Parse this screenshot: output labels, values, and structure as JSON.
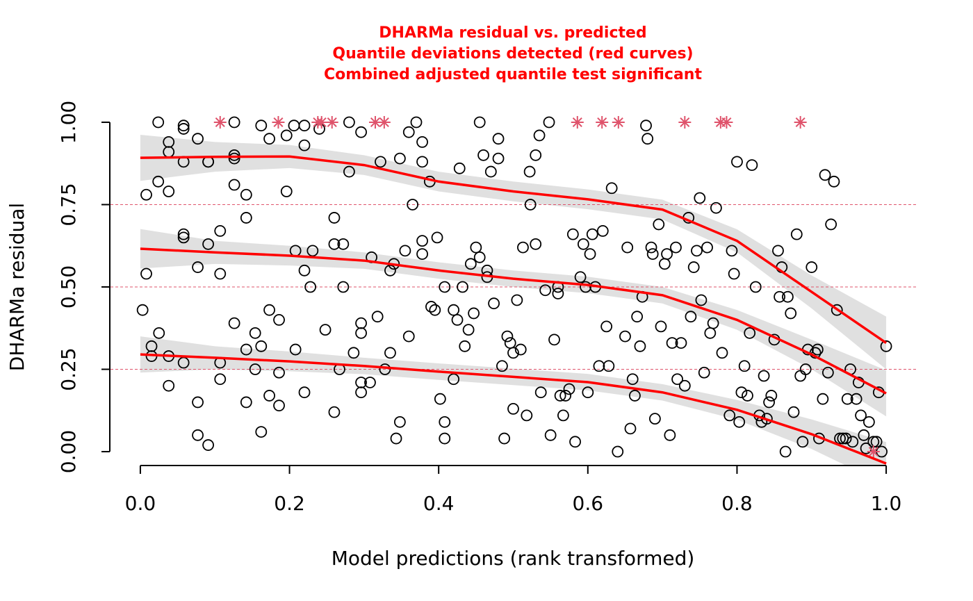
{
  "chart_data": {
    "type": "scatter",
    "title": [
      "DHARMa residual vs. predicted",
      "Quantile deviations detected (red curves)",
      "Combined adjusted quantile test significant"
    ],
    "title_color": "#ff0000",
    "x_label": "Model predictions (rank transformed)",
    "y_label": "DHARMa residual",
    "xlim": [
      -0.04,
      1.04
    ],
    "ylim": [
      -0.04,
      1.04
    ],
    "xticks": [
      {
        "value": 0,
        "label": "0.0"
      },
      {
        "value": 0.2,
        "label": "0.2"
      },
      {
        "value": 0.4,
        "label": "0.4"
      },
      {
        "value": 0.6,
        "label": "0.6"
      },
      {
        "value": 0.8,
        "label": "0.8"
      },
      {
        "value": 1,
        "label": "1.0"
      }
    ],
    "yticks": [
      {
        "value": 0,
        "label": "0.00"
      },
      {
        "value": 0.25,
        "label": "0.25"
      },
      {
        "value": 0.5,
        "label": "0.50"
      },
      {
        "value": 0.75,
        "label": "0.75"
      },
      {
        "value": 1,
        "label": "1.00"
      }
    ],
    "hlines": [
      0.25,
      0.5,
      0.75
    ],
    "hline_color": "#df536b",
    "band_color": "#e0e0e0",
    "series": [
      {
        "type": "band",
        "color": "#e0e0e0",
        "x": [
          0,
          0.1,
          0.2,
          0.3,
          0.4,
          0.5,
          0.6,
          0.7,
          0.8,
          0.9,
          1.0
        ],
        "lower": [
          0.822,
          0.85,
          0.861,
          0.84,
          0.79,
          0.76,
          0.736,
          0.705,
          0.605,
          0.435,
          0.25
        ],
        "upper": [
          0.962,
          0.94,
          0.931,
          0.9,
          0.85,
          0.82,
          0.796,
          0.765,
          0.675,
          0.535,
          0.41
        ]
      },
      {
        "type": "band",
        "color": "#e0e0e0",
        "x": [
          0,
          0.1,
          0.2,
          0.3,
          0.4,
          0.5,
          0.6,
          0.7,
          0.8,
          0.9,
          1.0
        ],
        "lower": [
          0.556,
          0.57,
          0.565,
          0.555,
          0.525,
          0.5,
          0.481,
          0.45,
          0.37,
          0.25,
          0.107
        ],
        "upper": [
          0.676,
          0.64,
          0.625,
          0.605,
          0.575,
          0.55,
          0.531,
          0.5,
          0.43,
          0.34,
          0.247
        ]
      },
      {
        "type": "band",
        "color": "#e0e0e0",
        "x": [
          0,
          0.1,
          0.2,
          0.3,
          0.4,
          0.5,
          0.6,
          0.7,
          0.8,
          0.9,
          1.0
        ],
        "lower": [
          0.24,
          0.25,
          0.244,
          0.235,
          0.218,
          0.202,
          0.186,
          0.155,
          0.097,
          0.008,
          -0.101
        ],
        "upper": [
          0.35,
          0.32,
          0.304,
          0.285,
          0.268,
          0.252,
          0.236,
          0.205,
          0.157,
          0.098,
          0.029
        ]
      },
      {
        "type": "scatter",
        "marker": "circle",
        "color": "#000000",
        "x": [
          0.003,
          0.008,
          0.008,
          0.015,
          0.015,
          0.024,
          0.024,
          0.025,
          0.038,
          0.038,
          0.038,
          0.038,
          0.038,
          0.058,
          0.058,
          0.058,
          0.058,
          0.058,
          0.058,
          0.077,
          0.077,
          0.077,
          0.077,
          0.091,
          0.091,
          0.091,
          0.091,
          0.107,
          0.107,
          0.107,
          0.107,
          0.126,
          0.126,
          0.126,
          0.126,
          0.126,
          0.142,
          0.142,
          0.142,
          0.142,
          0.154,
          0.154,
          0.162,
          0.162,
          0.162,
          0.173,
          0.173,
          0.173,
          0.186,
          0.186,
          0.186,
          0.196,
          0.196,
          0.206,
          0.208,
          0.208,
          0.22,
          0.22,
          0.22,
          0.22,
          0.228,
          0.231,
          0.24,
          0.248,
          0.26,
          0.26,
          0.26,
          0.267,
          0.272,
          0.272,
          0.28,
          0.28,
          0.286,
          0.296,
          0.296,
          0.296,
          0.296,
          0.296,
          0.308,
          0.31,
          0.318,
          0.322,
          0.328,
          0.335,
          0.335,
          0.34,
          0.343,
          0.348,
          0.348,
          0.355,
          0.36,
          0.36,
          0.365,
          0.37,
          0.378,
          0.378,
          0.378,
          0.378,
          0.388,
          0.39,
          0.395,
          0.398,
          0.402,
          0.408,
          0.408,
          0.408,
          0.42,
          0.42,
          0.425,
          0.428,
          0.432,
          0.435,
          0.44,
          0.443,
          0.447,
          0.45,
          0.455,
          0.455,
          0.46,
          0.465,
          0.465,
          0.47,
          0.474,
          0.48,
          0.48,
          0.485,
          0.488,
          0.492,
          0.496,
          0.5,
          0.5,
          0.505,
          0.51,
          0.513,
          0.518,
          0.522,
          0.523,
          0.53,
          0.53,
          0.535,
          0.537,
          0.543,
          0.548,
          0.55,
          0.555,
          0.56,
          0.56,
          0.563,
          0.567,
          0.57,
          0.575,
          0.58,
          0.583,
          0.59,
          0.594,
          0.597,
          0.6,
          0.603,
          0.606,
          0.61,
          0.615,
          0.62,
          0.625,
          0.628,
          0.632,
          0.64,
          0.65,
          0.653,
          0.657,
          0.66,
          0.663,
          0.666,
          0.67,
          0.673,
          0.678,
          0.68,
          0.685,
          0.687,
          0.69,
          0.695,
          0.698,
          0.703,
          0.706,
          0.71,
          0.713,
          0.718,
          0.72,
          0.725,
          0.73,
          0.735,
          0.738,
          0.742,
          0.746,
          0.75,
          0.752,
          0.756,
          0.76,
          0.764,
          0.768,
          0.772,
          0.78,
          0.79,
          0.793,
          0.796,
          0.8,
          0.803,
          0.806,
          0.81,
          0.814,
          0.817,
          0.82,
          0.825,
          0.83,
          0.833,
          0.836,
          0.84,
          0.843,
          0.846,
          0.85,
          0.855,
          0.857,
          0.86,
          0.865,
          0.868,
          0.872,
          0.876,
          0.88,
          0.885,
          0.888,
          0.892,
          0.895,
          0.9,
          0.905,
          0.908,
          0.91,
          0.915,
          0.918,
          0.922,
          0.926,
          0.93,
          0.934,
          0.938,
          0.942,
          0.946,
          0.948,
          0.952,
          0.955,
          0.96,
          0.963,
          0.966,
          0.97,
          0.973,
          0.977,
          0.983,
          0.987,
          0.99,
          0.994,
          1.0
        ],
        "values": [
          0.43,
          0.78,
          0.54,
          0.32,
          0.29,
          1.0,
          0.82,
          0.36,
          0.94,
          0.91,
          0.79,
          0.29,
          0.2,
          0.99,
          0.98,
          0.88,
          0.66,
          0.65,
          0.27,
          0.95,
          0.56,
          0.15,
          0.05,
          0.88,
          0.88,
          0.63,
          0.02,
          0.67,
          0.54,
          0.27,
          0.22,
          1.0,
          0.9,
          0.89,
          0.81,
          0.39,
          0.78,
          0.71,
          0.31,
          0.15,
          0.36,
          0.25,
          0.99,
          0.32,
          0.06,
          0.95,
          0.43,
          0.17,
          0.4,
          0.24,
          0.14,
          0.96,
          0.79,
          0.99,
          0.61,
          0.31,
          0.99,
          0.93,
          0.55,
          0.18,
          0.5,
          0.61,
          0.98,
          0.37,
          0.71,
          0.63,
          0.12,
          0.25,
          0.63,
          0.5,
          0.85,
          1.0,
          0.3,
          0.97,
          0.39,
          0.36,
          0.21,
          0.18,
          0.21,
          0.59,
          0.41,
          0.88,
          0.25,
          0.3,
          0.55,
          0.57,
          0.04,
          0.89,
          0.09,
          0.61,
          0.97,
          0.35,
          0.75,
          1.0,
          0.94,
          0.88,
          0.64,
          0.6,
          0.82,
          0.44,
          0.43,
          0.65,
          0.16,
          0.5,
          0.09,
          0.04,
          0.43,
          0.22,
          0.4,
          0.86,
          0.5,
          0.32,
          0.37,
          0.57,
          0.42,
          0.62,
          1.0,
          0.59,
          0.9,
          0.55,
          0.53,
          0.85,
          0.45,
          0.95,
          0.89,
          0.26,
          0.04,
          0.35,
          0.33,
          0.3,
          0.13,
          0.46,
          0.31,
          0.62,
          0.11,
          0.85,
          0.75,
          0.9,
          0.63,
          0.96,
          0.18,
          0.49,
          1.0,
          0.05,
          0.34,
          0.5,
          0.48,
          0.17,
          0.11,
          0.17,
          0.19,
          0.66,
          0.03,
          0.53,
          0.63,
          0.5,
          0.18,
          0.6,
          0.66,
          0.5,
          0.26,
          0.67,
          0.38,
          0.26,
          0.8,
          0.0,
          0.35,
          0.62,
          0.07,
          0.22,
          0.17,
          0.41,
          0.32,
          0.47,
          0.99,
          0.95,
          0.62,
          0.6,
          0.1,
          0.69,
          0.38,
          0.57,
          0.6,
          0.05,
          0.33,
          0.62,
          0.22,
          0.33,
          0.2,
          0.71,
          0.41,
          0.56,
          0.61,
          0.77,
          0.46,
          0.24,
          0.62,
          0.36,
          0.39,
          0.74,
          0.3,
          0.11,
          0.61,
          0.54,
          0.88,
          0.09,
          0.18,
          0.26,
          0.17,
          0.36,
          0.87,
          0.5,
          0.11,
          0.09,
          0.23,
          0.1,
          0.15,
          0.17,
          0.34,
          0.61,
          0.47,
          0.56,
          0.0,
          0.47,
          0.42,
          0.12,
          0.66,
          0.23,
          0.03,
          0.25,
          0.31,
          0.56,
          0.3,
          0.31,
          0.04,
          0.16,
          0.84,
          0.24,
          0.69,
          0.82,
          0.43,
          0.04,
          0.04,
          0.04,
          0.16,
          0.25,
          0.03,
          0.16,
          0.21,
          0.11,
          0.05,
          0.01,
          0.09,
          0.03,
          0.03,
          0.18,
          0.0,
          0.32
        ]
      },
      {
        "type": "scatter",
        "marker": "star",
        "color": "#df536b",
        "x": [
          0.107,
          0.185,
          0.238,
          0.243,
          0.257,
          0.315,
          0.327,
          0.586,
          0.619,
          0.641,
          0.73,
          0.778,
          0.786,
          0.885,
          0.983
        ],
        "values": [
          1,
          1,
          1,
          1,
          1,
          1,
          1,
          1,
          1,
          1,
          1,
          1,
          1,
          1,
          0
        ]
      },
      {
        "type": "line",
        "color": "#ff0000",
        "x": [
          0,
          0.1,
          0.2,
          0.3,
          0.4,
          0.5,
          0.6,
          0.7,
          0.8,
          0.9,
          1.0
        ],
        "values": [
          0.892,
          0.895,
          0.896,
          0.87,
          0.82,
          0.79,
          0.766,
          0.735,
          0.64,
          0.485,
          0.33
        ]
      },
      {
        "type": "line",
        "color": "#ff0000",
        "x": [
          0,
          0.1,
          0.2,
          0.3,
          0.4,
          0.5,
          0.6,
          0.7,
          0.8,
          0.9,
          1.0
        ],
        "values": [
          0.616,
          0.605,
          0.595,
          0.58,
          0.55,
          0.525,
          0.506,
          0.475,
          0.4,
          0.295,
          0.177
        ]
      },
      {
        "type": "line",
        "color": "#ff0000",
        "x": [
          0,
          0.1,
          0.2,
          0.3,
          0.4,
          0.5,
          0.6,
          0.7,
          0.8,
          0.9,
          1.0
        ],
        "values": [
          0.295,
          0.285,
          0.274,
          0.26,
          0.243,
          0.227,
          0.211,
          0.18,
          0.127,
          0.053,
          -0.036
        ]
      }
    ]
  }
}
